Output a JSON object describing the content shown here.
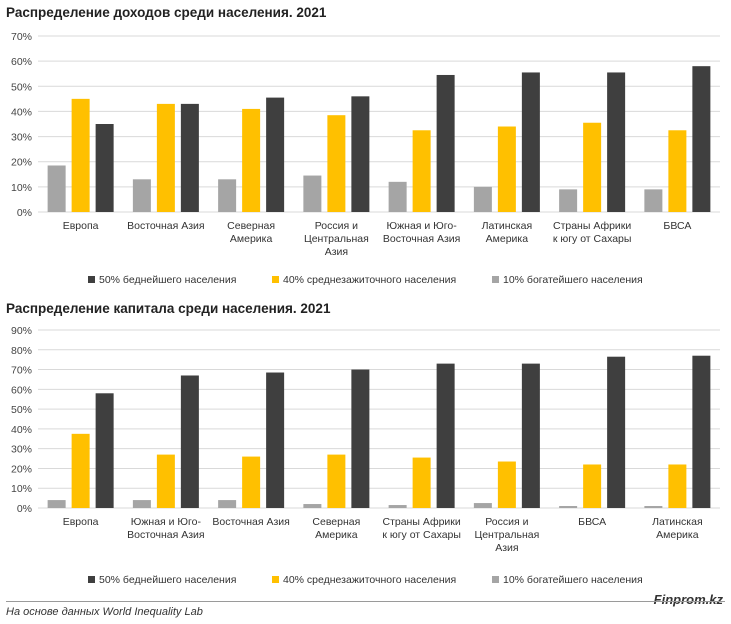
{
  "colors": {
    "series_bottom50": "#3f3f3f",
    "series_middle40": "#ffc000",
    "series_top10": "#a5a5a5",
    "grid": "#d9d9d9"
  },
  "footer": {
    "source": "На основе данных World Inequality Lab",
    "brand": "Finprom.kz"
  },
  "chart_data": [
    {
      "type": "bar",
      "title": "Распределение доходов среди населения. 2021",
      "ylim": [
        0,
        70
      ],
      "y_ticks": [
        "0%",
        "10%",
        "20%",
        "30%",
        "40%",
        "50%",
        "60%",
        "70%"
      ],
      "grid": true,
      "legend_position": "bottom",
      "categories": [
        [
          "Европа"
        ],
        [
          "Восточная Азия"
        ],
        [
          "Северная",
          "Америка"
        ],
        [
          "Россия и",
          "Центральная",
          "Азия"
        ],
        [
          "Южная и Юго-",
          "Восточная Азия"
        ],
        [
          "Латинская",
          "Америка"
        ],
        [
          "Страны Африки",
          "к югу от Сахары"
        ],
        [
          "БВСА"
        ]
      ],
      "series": [
        {
          "name": "50% беднейшего населения",
          "values": [
            35,
            43,
            45.5,
            46,
            54.5,
            55.5,
            55.5,
            58
          ]
        },
        {
          "name": "40% среднезажиточного населения",
          "values": [
            45,
            43,
            41,
            38.5,
            32.5,
            34,
            35.5,
            32.5
          ]
        },
        {
          "name": "10% богатейшего населения",
          "values": [
            18.5,
            13,
            13,
            14.5,
            12,
            10,
            9,
            9
          ]
        }
      ]
    },
    {
      "type": "bar",
      "title": "Распределение капитала среди населения. 2021",
      "ylim": [
        0,
        90
      ],
      "y_ticks": [
        "0%",
        "10%",
        "20%",
        "30%",
        "40%",
        "50%",
        "60%",
        "70%",
        "80%",
        "90%"
      ],
      "grid": true,
      "legend_position": "bottom",
      "categories": [
        [
          "Европа"
        ],
        [
          "Южная и Юго-",
          "Восточная Азия"
        ],
        [
          "Восточная Азия"
        ],
        [
          "Северная",
          "Америка"
        ],
        [
          "Страны Африки",
          "к югу от Сахары"
        ],
        [
          "Россия и",
          "Центральная",
          "Азия"
        ],
        [
          "БВСА"
        ],
        [
          "Латинская",
          "Америка"
        ]
      ],
      "series": [
        {
          "name": "50% беднейшего населения",
          "values": [
            58,
            67,
            68.5,
            70,
            73,
            73,
            76.5,
            77
          ]
        },
        {
          "name": "40% среднезажиточного населения",
          "values": [
            37.5,
            27,
            26,
            27,
            25.5,
            23.5,
            22,
            22
          ]
        },
        {
          "name": "10% богатейшего населения",
          "values": [
            4,
            4,
            4,
            2,
            1.5,
            2.5,
            1,
            1
          ]
        }
      ]
    }
  ]
}
